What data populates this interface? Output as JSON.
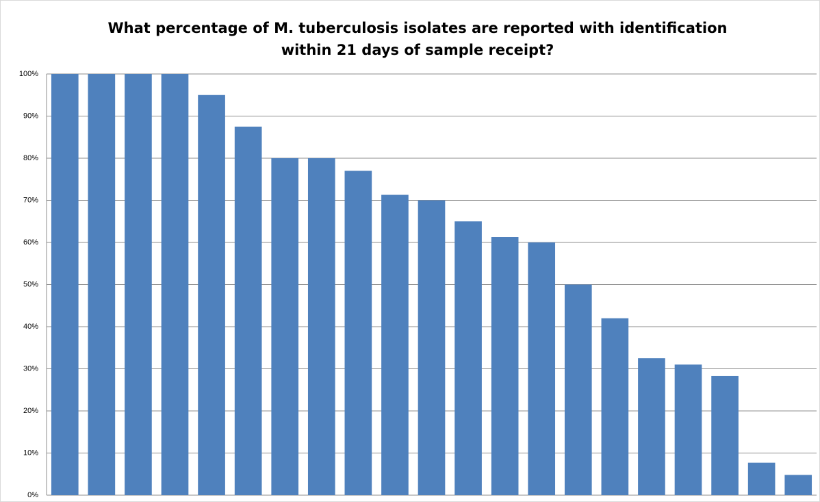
{
  "chart_data": {
    "type": "bar",
    "title": [
      "What percentage of M. tuberculosis isolates are reported with identification",
      "within 21 days of sample receipt?"
    ],
    "categories": [
      null,
      null,
      null,
      null,
      null,
      null,
      null,
      null,
      null,
      null,
      null,
      null,
      null,
      null,
      null,
      null,
      null,
      null,
      null,
      null,
      null
    ],
    "values": [
      100,
      100,
      100,
      100,
      95,
      87.5,
      80,
      80,
      77,
      71.3,
      70,
      65,
      61.3,
      60,
      50,
      42,
      32.5,
      31,
      28.3,
      7.7,
      4.8
    ],
    "color": "#4f81bd",
    "ylim": [
      0,
      100
    ],
    "yticks": [
      {
        "value": 0,
        "label": "0%"
      },
      {
        "value": 10,
        "label": "10%"
      },
      {
        "value": 20,
        "label": "20%"
      },
      {
        "value": 30,
        "label": "30%"
      },
      {
        "value": 40,
        "label": "40%"
      },
      {
        "value": 50,
        "label": "50%"
      },
      {
        "value": 60,
        "label": "60%"
      },
      {
        "value": 70,
        "label": "70%"
      },
      {
        "value": 80,
        "label": "80%"
      },
      {
        "value": 90,
        "label": "90%"
      },
      {
        "value": 100,
        "label": "100%"
      }
    ],
    "grid": true
  }
}
